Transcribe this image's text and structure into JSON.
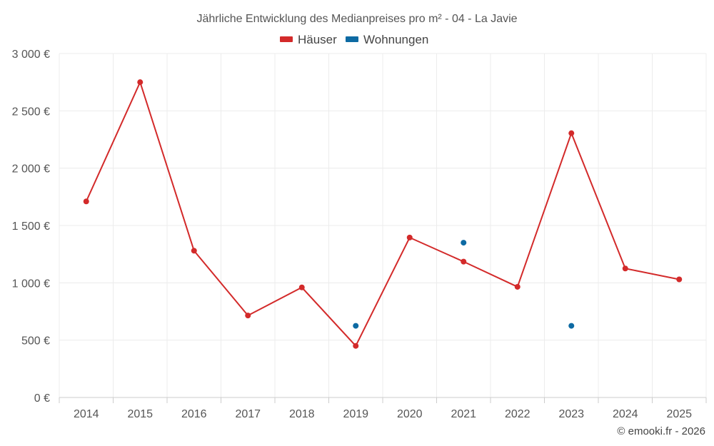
{
  "chart_data": {
    "type": "line",
    "title": "Jährliche Entwicklung des Medianpreises pro m² - 04 - La Javie",
    "categories": [
      "2014",
      "2015",
      "2016",
      "2017",
      "2018",
      "2019",
      "2020",
      "2021",
      "2022",
      "2023",
      "2024",
      "2025"
    ],
    "series": [
      {
        "name": "Häuser",
        "color": "#d32a2a",
        "values": [
          1710,
          2750,
          1280,
          715,
          960,
          450,
          1395,
          1185,
          965,
          2305,
          1125,
          1030
        ]
      },
      {
        "name": "Wohnungen",
        "color": "#0d6aa3",
        "values": [
          null,
          null,
          null,
          null,
          null,
          625,
          null,
          1350,
          null,
          625,
          null,
          null
        ]
      }
    ],
    "ylim": [
      0,
      3000
    ],
    "yticks": [
      {
        "value": 0,
        "label": "0 €"
      },
      {
        "value": 500,
        "label": "500 €"
      },
      {
        "value": 1000,
        "label": "1 000 €"
      },
      {
        "value": 1500,
        "label": "1 500 €"
      },
      {
        "value": 2000,
        "label": "2 000 €"
      },
      {
        "value": 2500,
        "label": "2 500 €"
      },
      {
        "value": 3000,
        "label": "3 000 €"
      }
    ],
    "grid": true,
    "legend_position": "top-center",
    "xlabel": "",
    "ylabel": ""
  },
  "credit": "© emooki.fr - 2026"
}
